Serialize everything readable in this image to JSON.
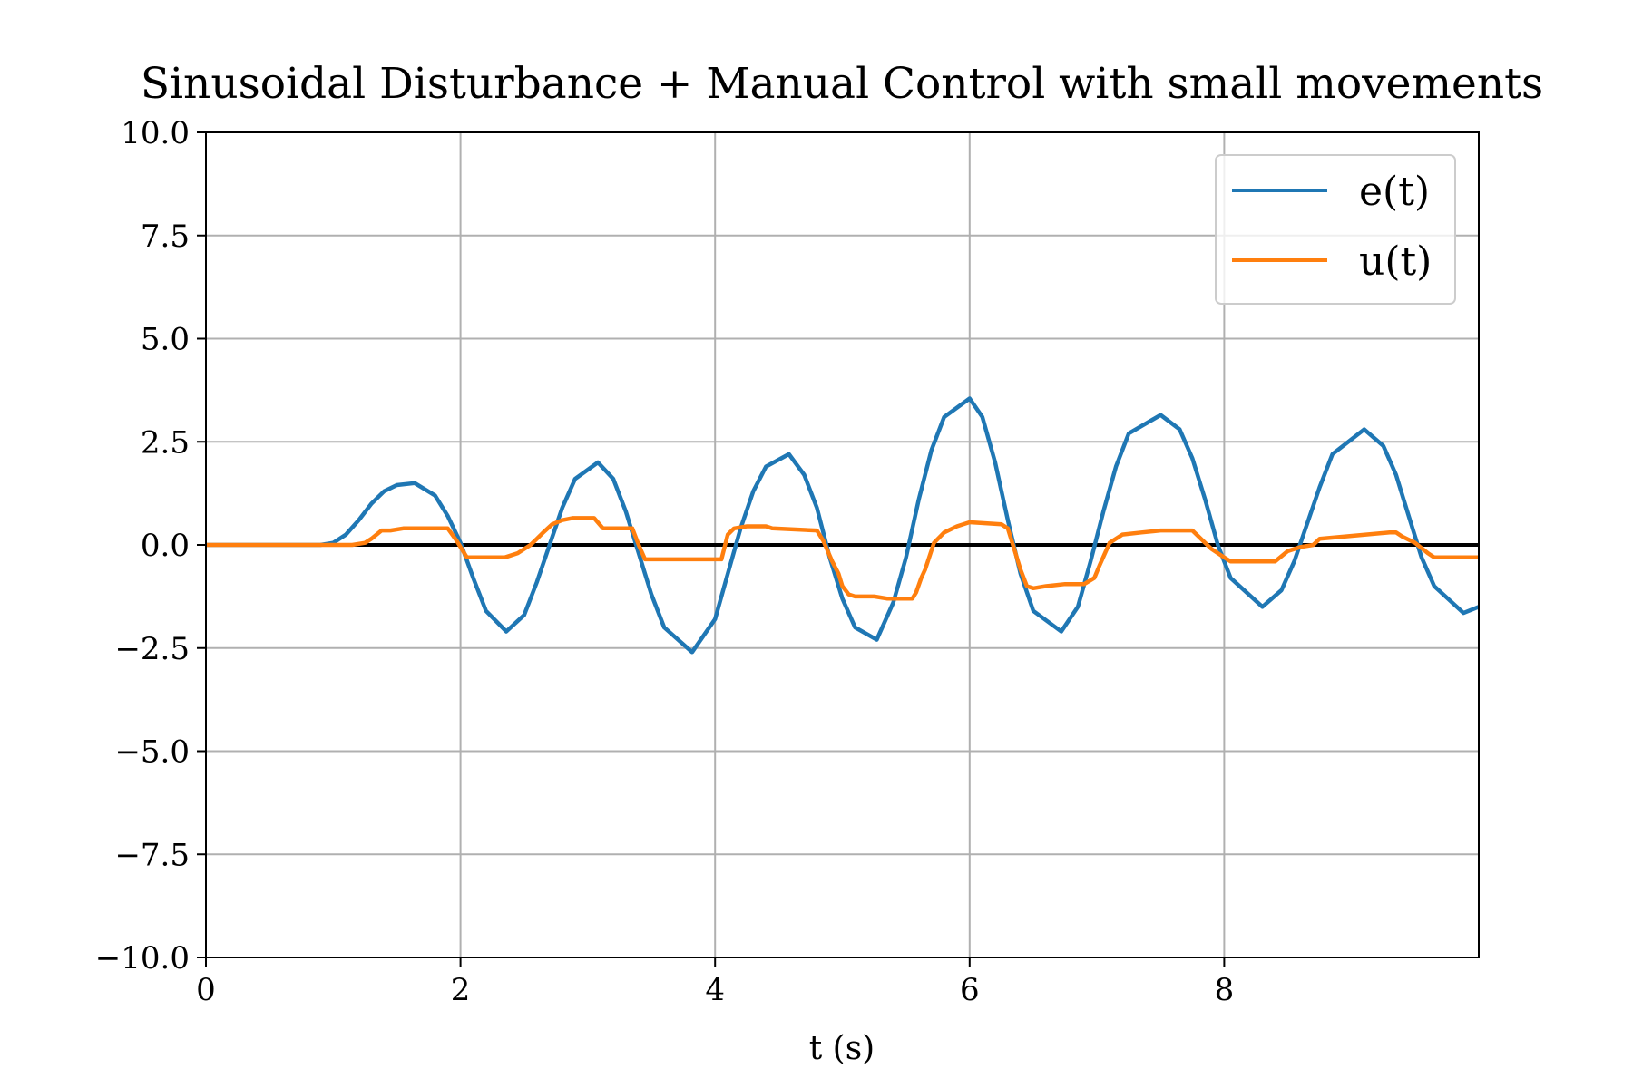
{
  "chart_data": {
    "type": "line",
    "title": "Sinusoidal Disturbance + Manual Control with small movements",
    "xlabel": "t (s)",
    "ylabel": "",
    "xlim": [
      0,
      10
    ],
    "ylim": [
      -10,
      10
    ],
    "xticks": [
      0,
      2,
      4,
      6,
      8
    ],
    "xtick_labels": [
      "0",
      "2",
      "4",
      "6",
      "8"
    ],
    "yticks": [
      10,
      7.5,
      5,
      2.5,
      0,
      -2.5,
      -5,
      -7.5,
      -10
    ],
    "ytick_labels": [
      "10.0",
      "7.5",
      "5.0",
      "2.5",
      "0.0",
      "−2.5",
      "−5.0",
      "−7.5",
      "−10.0"
    ],
    "grid": true,
    "legend_position": "top-right",
    "reference_line": 0,
    "series": [
      {
        "name": "e(t)",
        "color": "#1f77b4",
        "x": [
          0,
          0.9,
          1.0,
          1.1,
          1.2,
          1.3,
          1.4,
          1.5,
          1.64,
          1.8,
          1.9,
          2.0,
          2.1,
          2.2,
          2.36,
          2.5,
          2.6,
          2.7,
          2.8,
          2.9,
          3.08,
          3.2,
          3.3,
          3.4,
          3.5,
          3.6,
          3.82,
          4.0,
          4.1,
          4.2,
          4.3,
          4.4,
          4.58,
          4.7,
          4.8,
          4.9,
          5.0,
          5.1,
          5.27,
          5.4,
          5.5,
          5.6,
          5.7,
          5.8,
          6.0,
          6.1,
          6.2,
          6.3,
          6.4,
          6.5,
          6.72,
          6.85,
          6.95,
          7.05,
          7.15,
          7.25,
          7.5,
          7.65,
          7.75,
          7.85,
          7.95,
          8.05,
          8.3,
          8.45,
          8.55,
          8.65,
          8.75,
          8.85,
          9.1,
          9.25,
          9.35,
          9.45,
          9.55,
          9.65,
          9.88,
          10.0
        ],
        "y": [
          0,
          0,
          0.05,
          0.25,
          0.6,
          1.0,
          1.3,
          1.45,
          1.5,
          1.2,
          0.7,
          0.05,
          -0.8,
          -1.6,
          -2.1,
          -1.7,
          -0.9,
          0.0,
          0.9,
          1.6,
          2.0,
          1.6,
          0.8,
          -0.2,
          -1.2,
          -2.0,
          -2.6,
          -1.8,
          -0.7,
          0.4,
          1.3,
          1.9,
          2.2,
          1.7,
          0.9,
          -0.3,
          -1.3,
          -2.0,
          -2.3,
          -1.4,
          -0.3,
          1.1,
          2.3,
          3.1,
          3.55,
          3.1,
          2.0,
          0.6,
          -0.7,
          -1.6,
          -2.1,
          -1.5,
          -0.4,
          0.8,
          1.9,
          2.7,
          3.15,
          2.8,
          2.1,
          1.1,
          0.0,
          -0.8,
          -1.5,
          -1.1,
          -0.4,
          0.5,
          1.4,
          2.2,
          2.8,
          2.4,
          1.7,
          0.7,
          -0.3,
          -1.0,
          -1.65,
          -1.5
        ]
      },
      {
        "name": "u(t)",
        "color": "#ff7f0e",
        "x": [
          0,
          1.15,
          1.25,
          1.3,
          1.38,
          1.45,
          1.55,
          1.6,
          1.9,
          1.97,
          2.05,
          2.35,
          2.45,
          2.55,
          2.6,
          2.65,
          2.72,
          2.8,
          2.88,
          3.05,
          3.12,
          3.35,
          3.4,
          3.45,
          4.05,
          4.1,
          4.15,
          4.25,
          4.4,
          4.45,
          4.8,
          4.85,
          4.92,
          4.97,
          5.0,
          5.05,
          5.1,
          5.25,
          5.35,
          5.55,
          5.58,
          5.62,
          5.65,
          5.72,
          5.8,
          5.9,
          6.0,
          6.25,
          6.3,
          6.35,
          6.4,
          6.45,
          6.5,
          6.6,
          6.75,
          6.9,
          6.98,
          7.02,
          7.1,
          7.2,
          7.35,
          7.5,
          7.75,
          7.8,
          7.9,
          8.0,
          8.05,
          8.12,
          8.2,
          8.3,
          8.4,
          8.5,
          8.6,
          8.7,
          8.75,
          9.3,
          9.35,
          9.4,
          9.5,
          9.6,
          9.65,
          10.0
        ],
        "y": [
          0,
          0,
          0.05,
          0.15,
          0.35,
          0.35,
          0.4,
          0.4,
          0.4,
          0.1,
          -0.3,
          -0.3,
          -0.2,
          0.0,
          0.15,
          0.3,
          0.5,
          0.6,
          0.65,
          0.65,
          0.4,
          0.4,
          0.0,
          -0.35,
          -0.35,
          0.25,
          0.4,
          0.45,
          0.45,
          0.4,
          0.35,
          0.1,
          -0.4,
          -0.7,
          -1.0,
          -1.2,
          -1.25,
          -1.25,
          -1.3,
          -1.3,
          -1.15,
          -0.8,
          -0.6,
          0.05,
          0.3,
          0.45,
          0.55,
          0.5,
          0.4,
          -0.1,
          -0.6,
          -1.0,
          -1.05,
          -1.0,
          -0.95,
          -0.95,
          -0.8,
          -0.5,
          0.05,
          0.25,
          0.3,
          0.35,
          0.35,
          0.2,
          -0.1,
          -0.3,
          -0.4,
          -0.4,
          -0.4,
          -0.4,
          -0.4,
          -0.15,
          -0.05,
          0.0,
          0.15,
          0.3,
          0.3,
          0.2,
          0.05,
          -0.2,
          -0.3,
          -0.3
        ]
      }
    ]
  }
}
